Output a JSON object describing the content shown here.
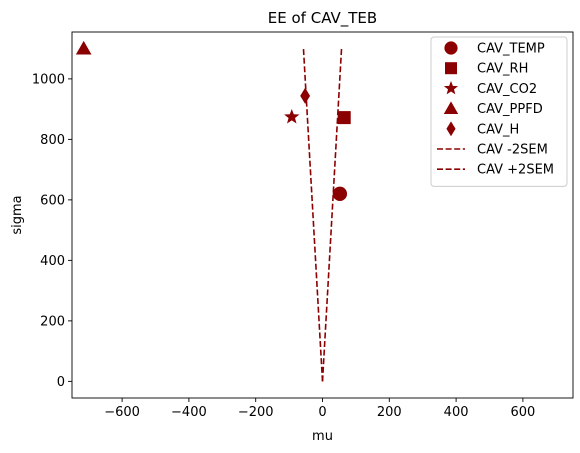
{
  "chart_data": {
    "type": "scatter",
    "title": "EE of CAV_TEB",
    "xlabel": "mu",
    "ylabel": "sigma",
    "xlim": [
      -750,
      750
    ],
    "ylim": [
      -55,
      1155
    ],
    "xticks": [
      -600,
      -400,
      -200,
      0,
      200,
      400,
      600
    ],
    "yticks": [
      0,
      200,
      400,
      600,
      800,
      1000
    ],
    "grid": false,
    "legend_position": "upper-right",
    "color": "#8b0000",
    "series": [
      {
        "name": "CAV_TEMP",
        "marker": "circle",
        "x": 52,
        "y": 620
      },
      {
        "name": "CAV_RH",
        "marker": "square",
        "x": 65,
        "y": 872
      },
      {
        "name": "CAV_CO2",
        "marker": "star",
        "x": -92,
        "y": 874
      },
      {
        "name": "CAV_PPFD",
        "marker": "triangle",
        "x": -715,
        "y": 1100
      },
      {
        "name": "CAV_H",
        "marker": "diamond",
        "x": -52,
        "y": 944
      }
    ],
    "lines": [
      {
        "name": "CAV -2SEM",
        "style": "dashed",
        "points": [
          [
            0,
            0
          ],
          [
            -57,
            1100
          ]
        ]
      },
      {
        "name": "CAV +2SEM",
        "style": "dashed",
        "points": [
          [
            0,
            0
          ],
          [
            57,
            1100
          ]
        ]
      }
    ]
  }
}
